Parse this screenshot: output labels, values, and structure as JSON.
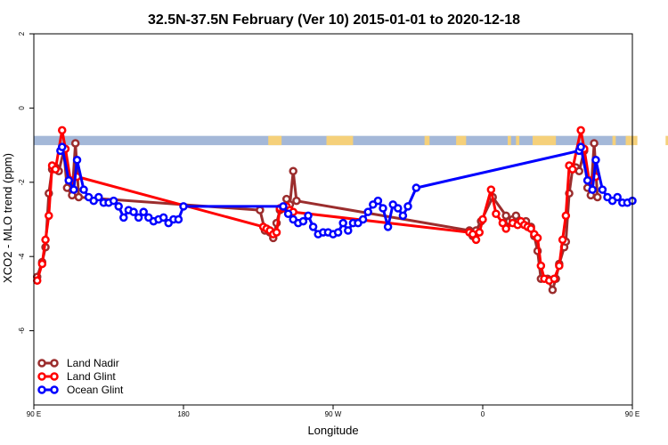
{
  "chart_data": {
    "type": "line",
    "title": "32.5N-37.5N February (Ver 10)   2015-01-01 to 2020-12-18",
    "xlabel": "Longitude",
    "ylabel": "XCO2 - MLO trend (ppm)",
    "xlim": [
      90,
      450
    ],
    "ylim": [
      -8,
      2
    ],
    "x_ticks": [
      {
        "value": 90,
        "label": "90 E"
      },
      {
        "value": 180,
        "label": "180"
      },
      {
        "value": 270,
        "label": "90 W"
      },
      {
        "value": 360,
        "label": "0"
      },
      {
        "value": 450,
        "label": "90 E"
      },
      {
        "value": 540,
        "label": "180"
      }
    ],
    "y_ticks": [
      2,
      0,
      -2,
      -4,
      -6
    ],
    "grid": false,
    "legend_position": "bottom-left",
    "land_sea_strip": {
      "y_range": [
        -1.0,
        -0.75
      ],
      "ocean_color": "#a4b8d8",
      "land_color": "#f5d07a",
      "land_segments": [
        [
          231,
          239
        ],
        [
          266,
          282
        ],
        [
          325,
          328
        ],
        [
          344,
          350
        ],
        [
          375,
          377
        ],
        [
          380,
          382
        ],
        [
          390,
          404
        ],
        [
          438,
          440
        ],
        [
          446,
          453
        ],
        [
          470,
          473
        ]
      ]
    },
    "series": [
      {
        "name": "Land Nadir",
        "color": "#9b2d2d",
        "points": [
          [
            92,
            -4.55
          ],
          [
            95,
            -4.15
          ],
          [
            97,
            -3.75
          ],
          [
            99,
            -2.3
          ],
          [
            101,
            -1.65
          ],
          [
            103,
            -1.6
          ],
          [
            105,
            -1.7
          ],
          [
            108,
            -1.15
          ],
          [
            110,
            -2.15
          ],
          [
            113,
            -2.35
          ],
          [
            115,
            -0.95
          ],
          [
            117,
            -2.4
          ],
          [
            226,
            -2.75
          ],
          [
            229,
            -3.3
          ],
          [
            232,
            -3.35
          ],
          [
            234,
            -3.5
          ],
          [
            236,
            -3.1
          ],
          [
            238,
            -2.75
          ],
          [
            240,
            -2.7
          ],
          [
            242,
            -2.45
          ],
          [
            244,
            -2.6
          ],
          [
            246,
            -1.7
          ],
          [
            248,
            -2.5
          ],
          [
            352,
            -3.3
          ],
          [
            354,
            -3.45
          ],
          [
            356,
            -3.3
          ],
          [
            359,
            -3.05
          ],
          [
            366,
            -2.4
          ],
          [
            374,
            -2.9
          ],
          [
            376,
            -3.05
          ],
          [
            378,
            -3.0
          ],
          [
            380,
            -2.9
          ],
          [
            386,
            -3.05
          ],
          [
            389,
            -3.2
          ],
          [
            391,
            -3.45
          ],
          [
            393,
            -3.85
          ],
          [
            395,
            -4.6
          ],
          [
            399,
            -4.6
          ],
          [
            402,
            -4.9
          ],
          [
            404,
            -4.6
          ],
          [
            406,
            -4.2
          ],
          [
            409,
            -3.75
          ],
          [
            410,
            -3.6
          ],
          [
            412,
            -2.3
          ],
          [
            414,
            -1.65
          ],
          [
            416,
            -1.6
          ],
          [
            418,
            -1.7
          ],
          [
            421,
            -1.15
          ],
          [
            423,
            -2.15
          ],
          [
            425,
            -2.35
          ],
          [
            427,
            -0.95
          ],
          [
            429,
            -2.4
          ]
        ]
      },
      {
        "name": "Land Glint",
        "color": "#ff0000",
        "points": [
          [
            92,
            -4.65
          ],
          [
            95,
            -4.2
          ],
          [
            97,
            -3.55
          ],
          [
            99,
            -2.9
          ],
          [
            101,
            -1.55
          ],
          [
            103,
            -1.65
          ],
          [
            107,
            -0.6
          ],
          [
            109,
            -1.1
          ],
          [
            112,
            -1.95
          ],
          [
            116,
            -1.85
          ],
          [
            228,
            -3.2
          ],
          [
            230,
            -3.25
          ],
          [
            232,
            -3.3
          ],
          [
            234,
            -3.4
          ],
          [
            236,
            -3.35
          ],
          [
            238,
            -2.7
          ],
          [
            240,
            -2.7
          ],
          [
            242,
            -2.65
          ],
          [
            244,
            -2.75
          ],
          [
            246,
            -2.8
          ],
          [
            352,
            -3.35
          ],
          [
            354,
            -3.4
          ],
          [
            356,
            -3.55
          ],
          [
            358,
            -3.35
          ],
          [
            360,
            -3.0
          ],
          [
            365,
            -2.2
          ],
          [
            368,
            -2.85
          ],
          [
            372,
            -3.1
          ],
          [
            374,
            -3.25
          ],
          [
            378,
            -3.1
          ],
          [
            381,
            -3.15
          ],
          [
            383,
            -3.05
          ],
          [
            385,
            -3.15
          ],
          [
            387,
            -3.2
          ],
          [
            389,
            -3.25
          ],
          [
            391,
            -3.4
          ],
          [
            393,
            -3.5
          ],
          [
            395,
            -4.25
          ],
          [
            397,
            -4.6
          ],
          [
            400,
            -4.65
          ],
          [
            403,
            -4.6
          ],
          [
            406,
            -4.25
          ],
          [
            408,
            -3.55
          ],
          [
            410,
            -2.9
          ],
          [
            412,
            -1.55
          ],
          [
            414,
            -1.65
          ],
          [
            419,
            -0.6
          ],
          [
            421,
            -1.1
          ],
          [
            424,
            -1.95
          ],
          [
            428,
            -1.85
          ]
        ]
      },
      {
        "name": "Ocean Glint",
        "color": "#0000ff",
        "points": [
          [
            106,
            -1.15
          ],
          [
            107,
            -1.05
          ],
          [
            111,
            -1.95
          ],
          [
            114,
            -2.2
          ],
          [
            116,
            -1.4
          ],
          [
            120,
            -2.2
          ],
          [
            123,
            -2.4
          ],
          [
            126,
            -2.5
          ],
          [
            129,
            -2.4
          ],
          [
            132,
            -2.55
          ],
          [
            135,
            -2.55
          ],
          [
            138,
            -2.5
          ],
          [
            141,
            -2.65
          ],
          [
            144,
            -2.95
          ],
          [
            147,
            -2.75
          ],
          [
            150,
            -2.8
          ],
          [
            153,
            -2.95
          ],
          [
            156,
            -2.8
          ],
          [
            159,
            -2.95
          ],
          [
            162,
            -3.05
          ],
          [
            165,
            -3.0
          ],
          [
            168,
            -2.95
          ],
          [
            171,
            -3.1
          ],
          [
            174,
            -3.0
          ],
          [
            177,
            -3.0
          ],
          [
            180,
            -2.65
          ],
          [
            240,
            -2.65
          ],
          [
            243,
            -2.85
          ],
          [
            246,
            -3.0
          ],
          [
            249,
            -3.1
          ],
          [
            252,
            -3.05
          ],
          [
            255,
            -2.9
          ],
          [
            258,
            -3.2
          ],
          [
            261,
            -3.4
          ],
          [
            264,
            -3.35
          ],
          [
            267,
            -3.35
          ],
          [
            270,
            -3.4
          ],
          [
            273,
            -3.35
          ],
          [
            276,
            -3.1
          ],
          [
            279,
            -3.3
          ],
          [
            282,
            -3.1
          ],
          [
            285,
            -3.1
          ],
          [
            288,
            -3.0
          ],
          [
            291,
            -2.8
          ],
          [
            294,
            -2.6
          ],
          [
            297,
            -2.5
          ],
          [
            300,
            -2.7
          ],
          [
            303,
            -3.2
          ],
          [
            306,
            -2.6
          ],
          [
            309,
            -2.7
          ],
          [
            312,
            -2.9
          ],
          [
            315,
            -2.65
          ],
          [
            320,
            -2.15
          ],
          [
            418,
            -1.15
          ],
          [
            419,
            -1.05
          ],
          [
            423,
            -1.95
          ],
          [
            426,
            -2.2
          ],
          [
            428,
            -1.4
          ],
          [
            432,
            -2.2
          ],
          [
            435,
            -2.4
          ],
          [
            438,
            -2.5
          ],
          [
            441,
            -2.4
          ],
          [
            444,
            -2.55
          ],
          [
            447,
            -2.55
          ],
          [
            450,
            -2.5
          ]
        ]
      }
    ]
  }
}
